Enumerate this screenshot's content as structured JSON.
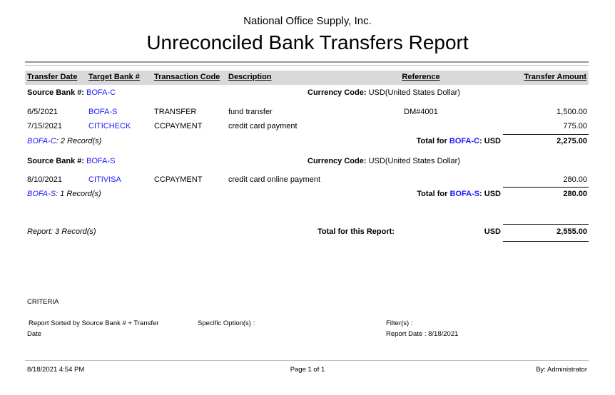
{
  "company": "National Office Supply, Inc.",
  "title": "Unreconciled Bank Transfers Report",
  "columns": {
    "date": "Transfer Date",
    "target": "Target Bank #",
    "code": "Transaction Code",
    "description": "Description",
    "reference": "Reference",
    "amount": "Transfer Amount"
  },
  "labels": {
    "source_bank": "Source Bank #:",
    "currency_code": "Currency Code:",
    "currency_value": "USD(United States Dollar)",
    "total_for": "Total for",
    "usd_suffix": ": USD"
  },
  "groups": [
    {
      "bank": "BOFA-C",
      "rows": [
        {
          "date": "6/5/2021",
          "target": "BOFA-S",
          "code": "TRANSFER",
          "description": "fund transfer",
          "reference": "DM#4001",
          "amount": "1,500.00"
        },
        {
          "date": "7/15/2021",
          "target": "CITICHECK",
          "code": "CCPAYMENT",
          "description": "credit card payment",
          "reference": "",
          "amount": "775.00"
        }
      ],
      "records": ": 2 Record(s)",
      "total": "2,275.00"
    },
    {
      "bank": "BOFA-S",
      "rows": [
        {
          "date": "8/10/2021",
          "target": "CITIVISA",
          "code": "CCPAYMENT",
          "description": "credit card online payment",
          "reference": "",
          "amount": "280.00"
        }
      ],
      "records": ": 1 Record(s)",
      "total": "280.00"
    }
  ],
  "report_total": {
    "records": "Report: 3 Record(s)",
    "label": "Total for this Report:",
    "currency": "USD",
    "amount": "2,555.00"
  },
  "criteria": {
    "heading": "CRITERIA",
    "sorted_line1": "Report Sorted by Source Bank # + Transfer",
    "sorted_line2": "Date",
    "specific_options": "Specific Option(s) :",
    "filters": "Filter(s) :",
    "report_date": "Report Date : 8/18/2021"
  },
  "footer": {
    "timestamp": "8/18/2021 4:54 PM",
    "page": "Page 1 of 1",
    "by": "By: Administrator"
  }
}
